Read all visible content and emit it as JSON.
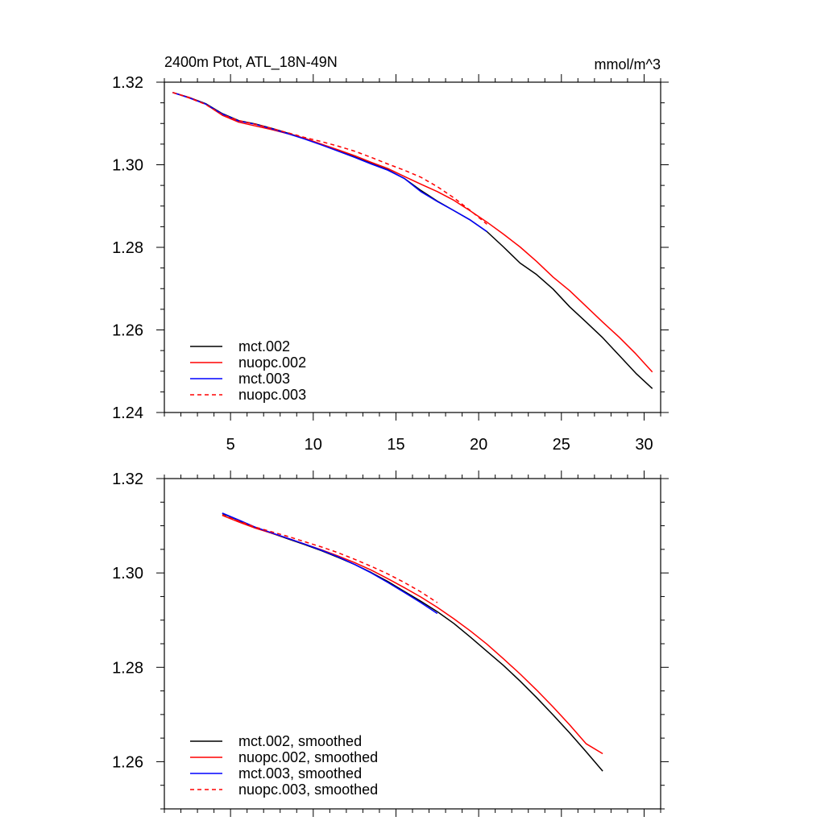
{
  "chart_data": [
    {
      "type": "line",
      "title": "2400m Ptot, ATL_18N-49N",
      "units": "mmol/m^3",
      "xlim": [
        1,
        31
      ],
      "ylim": [
        1.24,
        1.32
      ],
      "xticks": [
        5,
        10,
        15,
        20,
        25,
        30
      ],
      "xtick_labels": [
        "5",
        "10",
        "15",
        "20",
        "25",
        "30"
      ],
      "yticks": [
        1.24,
        1.26,
        1.28,
        1.3,
        1.32
      ],
      "ytick_labels": [
        "1.24",
        "1.26",
        "1.28",
        "1.30",
        "1.32"
      ],
      "legend_position": "bottom-left",
      "series": [
        {
          "name": "mct.002",
          "color": "#000000",
          "dash": "solid",
          "x": [
            1.5,
            2.5,
            3.5,
            4.5,
            5.5,
            6.5,
            7.5,
            8.5,
            9.5,
            10.5,
            11.5,
            12.5,
            13.5,
            14.5,
            15.5,
            16.5,
            17.5,
            18.5,
            19.5,
            20.5,
            21.5,
            22.5,
            23.5,
            24.5,
            25.5,
            26.5,
            27.5,
            28.5,
            29.5,
            30.5
          ],
          "y": [
            1.3175,
            1.3163,
            1.3148,
            1.3124,
            1.3107,
            1.3099,
            1.3088,
            1.3076,
            1.3063,
            1.3049,
            1.3034,
            1.3019,
            1.3003,
            1.2988,
            1.2967,
            1.2938,
            1.2912,
            1.2889,
            1.2866,
            1.2838,
            1.2801,
            1.2762,
            1.2734,
            1.2699,
            1.2656,
            1.2619,
            1.2581,
            1.2538,
            1.2495,
            1.2458
          ]
        },
        {
          "name": "nuopc.002",
          "color": "#ff0000",
          "dash": "solid",
          "x": [
            1.5,
            2.5,
            3.5,
            4.5,
            5.5,
            6.5,
            7.5,
            8.5,
            9.5,
            10.5,
            11.5,
            12.5,
            13.5,
            14.5,
            15.5,
            16.5,
            17.5,
            18.5,
            19.5,
            20.5,
            21.5,
            22.5,
            23.5,
            24.5,
            25.5,
            26.5,
            27.5,
            28.5,
            29.5,
            30.5
          ],
          "y": [
            1.3175,
            1.3163,
            1.3147,
            1.312,
            1.3103,
            1.3094,
            1.3085,
            1.3075,
            1.3064,
            1.305,
            1.3036,
            1.3022,
            1.3006,
            1.2991,
            1.2972,
            1.2953,
            1.2935,
            1.2914,
            1.2888,
            1.2861,
            1.2832,
            1.2801,
            1.2766,
            1.2728,
            1.2695,
            1.2657,
            1.2619,
            1.2582,
            1.2542,
            1.2498
          ]
        },
        {
          "name": "mct.003",
          "color": "#0000ff",
          "dash": "solid",
          "x": [
            1.5,
            2.5,
            3.5,
            4.5,
            5.5,
            6.5,
            7.5,
            8.5,
            9.5,
            10.5,
            11.5,
            12.5,
            13.5,
            14.5,
            15.5,
            16.5,
            17.5,
            18.5,
            19.5,
            20.5
          ],
          "y": [
            1.3175,
            1.3162,
            1.3147,
            1.3123,
            1.3106,
            1.3098,
            1.3087,
            1.3075,
            1.3062,
            1.3048,
            1.3033,
            1.3018,
            1.3002,
            1.2987,
            1.2967,
            1.2935,
            1.2911,
            1.2889,
            1.2866,
            1.2838
          ]
        },
        {
          "name": "nuopc.003",
          "color": "#ff0000",
          "dash": "dashed",
          "x": [
            1.5,
            2.5,
            3.5,
            4.5,
            5.5,
            6.5,
            7.5,
            8.5,
            9.5,
            10.5,
            11.5,
            12.5,
            13.5,
            14.5,
            15.5,
            16.5,
            17.5,
            18.5,
            19.5,
            20.5
          ],
          "y": [
            1.3175,
            1.3162,
            1.3146,
            1.3121,
            1.3107,
            1.3098,
            1.3088,
            1.3077,
            1.3066,
            1.3056,
            1.3045,
            1.3033,
            1.3018,
            1.3002,
            1.2987,
            1.297,
            1.2947,
            1.292,
            1.2889,
            1.2856
          ]
        }
      ]
    },
    {
      "type": "line",
      "xlim": [
        1,
        31
      ],
      "ylim": [
        1.25,
        1.32
      ],
      "xticks": [
        5,
        10,
        15,
        20,
        25,
        30
      ],
      "xtick_labels": [],
      "yticks": [
        1.26,
        1.28,
        1.3,
        1.32
      ],
      "ytick_labels": [
        "1.26",
        "1.28",
        "1.30",
        "1.32"
      ],
      "legend_position": "bottom-left",
      "series": [
        {
          "name": "mct.002, smoothed",
          "color": "#000000",
          "dash": "solid",
          "x": [
            4.5,
            5.5,
            6.5,
            7.5,
            8.5,
            9.5,
            10.5,
            11.5,
            12.5,
            13.5,
            14.5,
            15.5,
            16.5,
            17.5,
            18.5,
            19.5,
            20.5,
            21.5,
            22.5,
            23.5,
            24.5,
            25.5,
            26.5,
            27.5
          ],
          "y": [
            1.3126,
            1.3111,
            1.3096,
            1.3084,
            1.3072,
            1.306,
            1.3047,
            1.3033,
            1.3018,
            1.3001,
            1.2982,
            1.2961,
            1.294,
            1.2918,
            1.2893,
            1.2864,
            1.2834,
            1.2804,
            1.2771,
            1.2736,
            1.2699,
            1.2661,
            1.2621,
            1.258
          ]
        },
        {
          "name": "nuopc.002, smoothed",
          "color": "#ff0000",
          "dash": "solid",
          "x": [
            4.5,
            5.5,
            6.5,
            7.5,
            8.5,
            9.5,
            10.5,
            11.5,
            12.5,
            13.5,
            14.5,
            15.5,
            16.5,
            17.5,
            18.5,
            19.5,
            20.5,
            21.5,
            22.5,
            23.5,
            24.5,
            25.5,
            26.5,
            27.5
          ],
          "y": [
            1.3122,
            1.3108,
            1.3095,
            1.3084,
            1.3073,
            1.3061,
            1.3049,
            1.3036,
            1.3022,
            1.3006,
            1.2988,
            1.2969,
            1.2949,
            1.2927,
            1.2903,
            1.2877,
            1.2849,
            1.2818,
            1.2786,
            1.2752,
            1.2716,
            1.2678,
            1.2638,
            1.2617
          ]
        },
        {
          "name": "mct.003, smoothed",
          "color": "#0000ff",
          "dash": "solid",
          "x": [
            4.5,
            5.5,
            6.5,
            7.5,
            8.5,
            9.5,
            10.5,
            11.5,
            12.5,
            13.5,
            14.5,
            15.5,
            16.5,
            17.5
          ],
          "y": [
            1.3127,
            1.3112,
            1.3097,
            1.3085,
            1.3073,
            1.3061,
            1.3048,
            1.3034,
            1.3018,
            1.3,
            1.298,
            1.2959,
            1.2937,
            1.2914
          ]
        },
        {
          "name": "nuopc.003, smoothed",
          "color": "#ff0000",
          "dash": "dashed",
          "x": [
            4.5,
            5.5,
            6.5,
            7.5,
            8.5,
            9.5,
            10.5,
            11.5,
            12.5,
            13.5,
            14.5,
            15.5,
            16.5,
            17.5
          ],
          "y": [
            1.3123,
            1.311,
            1.3097,
            1.3087,
            1.3077,
            1.3066,
            1.3055,
            1.3043,
            1.3029,
            1.3014,
            1.2998,
            1.298,
            1.296,
            1.2937
          ]
        }
      ]
    }
  ]
}
